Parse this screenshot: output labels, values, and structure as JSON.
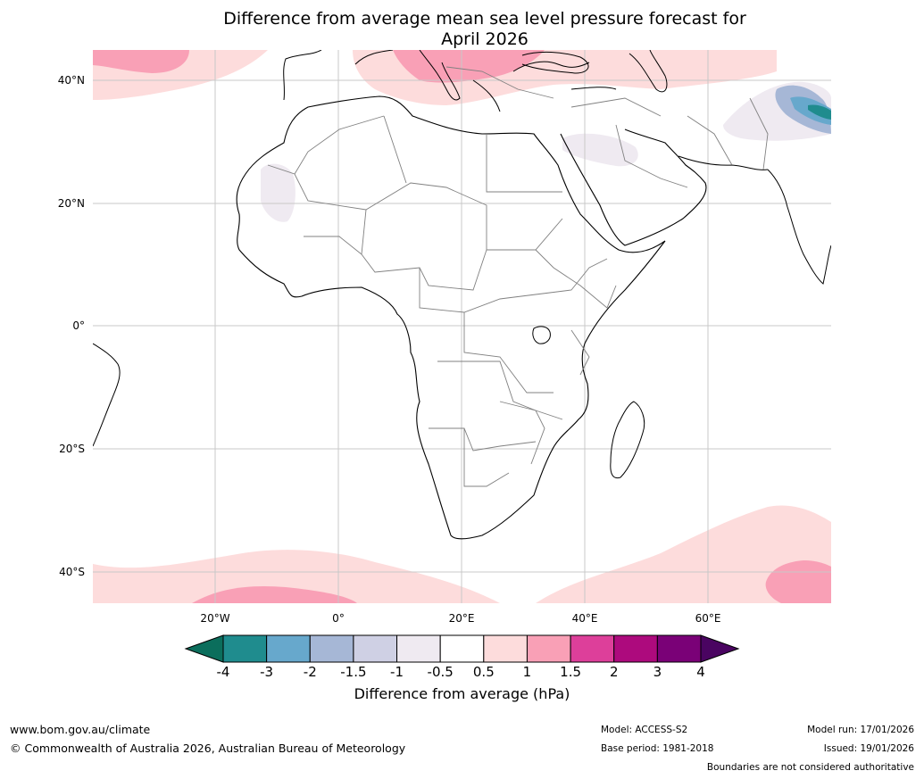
{
  "title": {
    "line1": "Difference from average mean sea level pressure forecast for",
    "line2": "April 2026"
  },
  "map": {
    "lat_labels": [
      "40°N",
      "20°N",
      "0°",
      "20°S",
      "40°S"
    ],
    "lon_labels": [
      "20°W",
      "0°",
      "20°E",
      "40°E",
      "60°E"
    ]
  },
  "colorbar": {
    "ticks": [
      "-4",
      "-3",
      "-2",
      "-1.5",
      "-1",
      "-0.5",
      "0.5",
      "1",
      "1.5",
      "2",
      "3",
      "4"
    ],
    "colors": [
      "#1f8c8e",
      "#67a8cc",
      "#a6b7d6",
      "#cfd0e4",
      "#efeaf1",
      "#ffffff",
      "#fddcdc",
      "#f9a0b6",
      "#dd3f9a",
      "#ad0a7d",
      "#7a0177"
    ],
    "low_extend_color": "#0b6e5c",
    "high_extend_color": "#4a0461",
    "label": "Difference from average (hPa)"
  },
  "footer": {
    "website": "www.bom.gov.au/climate",
    "copyright": "© Commonwealth of Australia 2026, Australian Bureau of Meteorology",
    "model": "Model: ACCESS-S2",
    "base_period": "Base period: 1981-2018",
    "model_run": "Model run: 17/01/2026",
    "issued": "Issued: 19/01/2026",
    "disclaimer": "Boundaries are not considered authoritative"
  }
}
